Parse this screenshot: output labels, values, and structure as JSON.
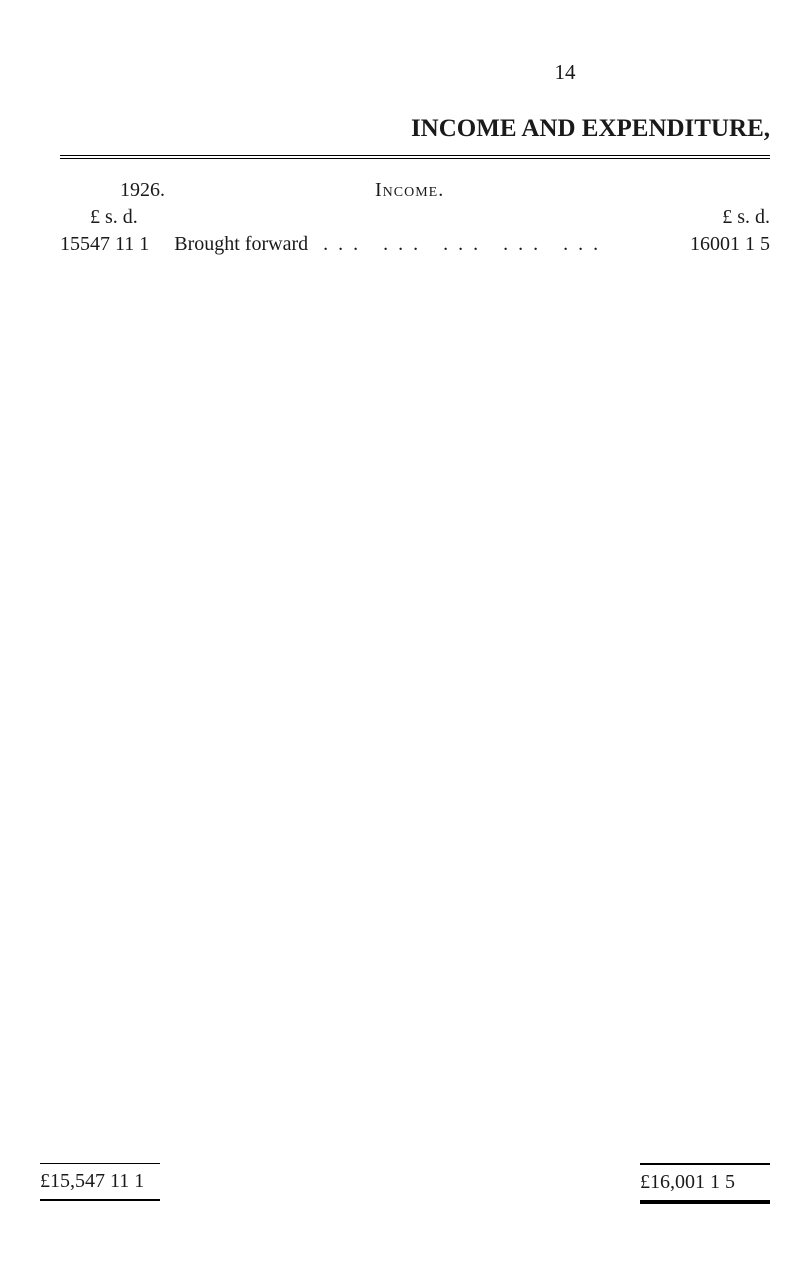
{
  "page_number": "14",
  "title": "INCOME AND EXPENDITURE,",
  "year": "1926.",
  "section_label": "Income.",
  "currency_header_left": "£   s.   d.",
  "currency_header_right": "£   s.   d.",
  "entry": {
    "amount_left": "15547 11   1",
    "description": "Brought  forward",
    "dots": "...       ...       ...       ...       ...",
    "amount_right": "16001   1   5"
  },
  "totals": {
    "left": "£15,547  11   1",
    "right": "£16,001   1   5"
  }
}
